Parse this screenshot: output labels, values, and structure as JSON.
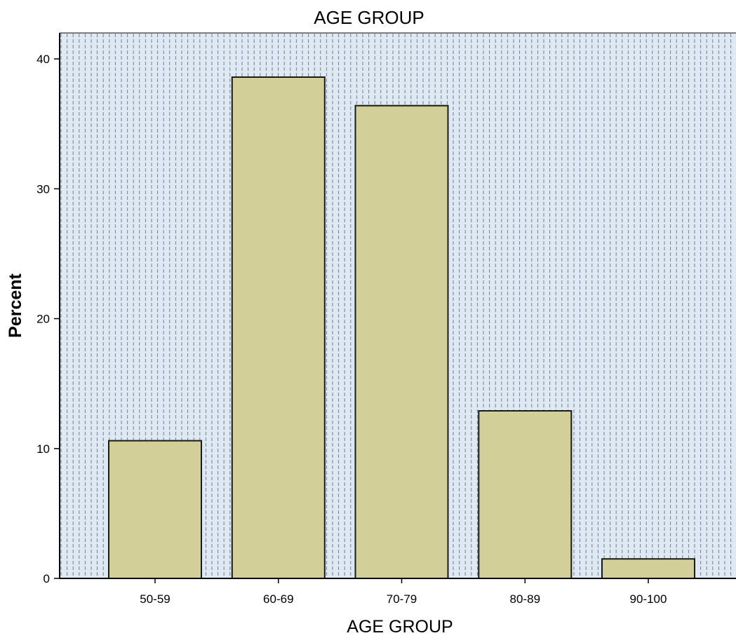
{
  "chart_data": {
    "type": "bar",
    "title": "AGE GROUP",
    "xlabel": "AGE GROUP",
    "ylabel": "Percent",
    "categories": [
      "50-59",
      "60-69",
      "70-79",
      "80-89",
      "90-100"
    ],
    "values": [
      10.6,
      38.6,
      36.4,
      12.9,
      1.5
    ],
    "ylim": [
      0,
      42
    ],
    "yticks": [
      0,
      10,
      20,
      30,
      40
    ],
    "ytick_labels": [
      "0",
      "10",
      "20",
      "30",
      "40"
    ],
    "grid": false,
    "legend": "none",
    "colors": {
      "bar_fill": "#d3cf98",
      "bar_stroke": "#1a1a1a",
      "plot_background": "#dfe9f4",
      "background_hatch": "#6f7f90",
      "axis": "#000000"
    }
  }
}
